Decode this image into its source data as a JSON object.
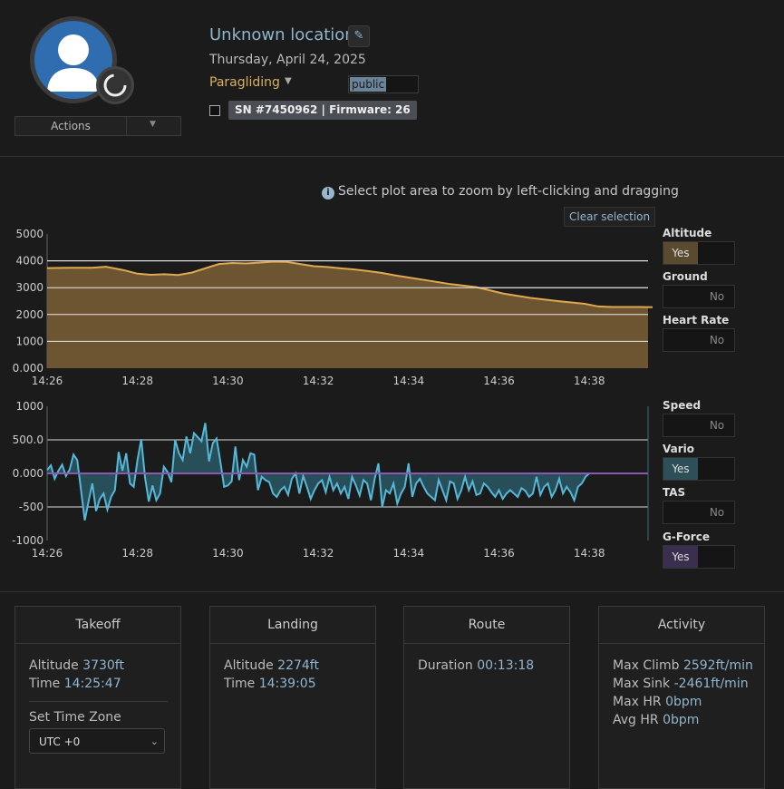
{
  "header": {
    "title": "Unknown location",
    "date": "Thursday, April 24, 2025",
    "activity": "Paragliding",
    "visibility": "public",
    "device": "SN #7450962 | Firmware: 26",
    "actions_label": "Actions",
    "edit_icon": "pencil-icon"
  },
  "hint": {
    "icon": "info-icon",
    "text": "Select plot area to zoom by left-clicking and dragging"
  },
  "clear_selection": "Clear selection",
  "toggles": {
    "altitude": {
      "label": "Altitude",
      "state": "Yes",
      "color": "#5a4a30"
    },
    "ground": {
      "label": "Ground",
      "state": "No"
    },
    "heart_rate": {
      "label": "Heart Rate",
      "state": "No"
    },
    "speed": {
      "label": "Speed",
      "state": "No"
    },
    "vario": {
      "label": "Vario",
      "state": "Yes",
      "color": "#2e4e58"
    },
    "tas": {
      "label": "TAS",
      "state": "No"
    },
    "gforce": {
      "label": "G-Force",
      "state": "Yes",
      "color": "#3b2f50"
    }
  },
  "cards": {
    "takeoff": {
      "title": "Takeoff",
      "altitude_label": "Altitude",
      "altitude": "3730ft",
      "time_label": "Time",
      "time": "14:25:47",
      "tz_label": "Set Time Zone",
      "tz_value": "UTC +0"
    },
    "landing": {
      "title": "Landing",
      "altitude_label": "Altitude",
      "altitude": "2274ft",
      "time_label": "Time",
      "time": "14:39:05"
    },
    "route": {
      "title": "Route",
      "duration_label": "Duration",
      "duration": "00:13:18"
    },
    "activity": {
      "title": "Activity",
      "max_climb_label": "Max Climb",
      "max_climb": "2592ft/min",
      "max_sink_label": "Max Sink",
      "max_sink": "-2461ft/min",
      "max_hr_label": "Max HR",
      "max_hr": "0bpm",
      "avg_hr_label": "Avg HR",
      "avg_hr": "0bpm"
    }
  },
  "chart_data": [
    {
      "type": "area",
      "series": [
        {
          "name": "Altitude",
          "color": "#e0a850",
          "x": [
            0,
            0.5,
            1,
            1.3,
            1.7,
            2,
            2.3,
            2.6,
            2.9,
            3.2,
            3.5,
            3.8,
            4.1,
            4.4,
            4.7,
            5,
            5.3,
            5.6,
            5.9,
            6.2,
            6.5,
            6.8,
            7.1,
            7.4,
            7.7,
            8,
            8.3,
            8.6,
            8.9,
            9.2,
            9.5,
            9.8,
            10.1,
            10.4,
            10.7,
            11,
            11.3,
            11.6,
            11.9,
            12.2,
            12.5,
            12.8,
            13.1,
            13.4
          ],
          "values": [
            3730,
            3740,
            3740,
            3780,
            3650,
            3520,
            3480,
            3500,
            3470,
            3560,
            3720,
            3880,
            3920,
            3900,
            3930,
            3970,
            3960,
            3880,
            3800,
            3770,
            3720,
            3680,
            3620,
            3550,
            3460,
            3380,
            3300,
            3220,
            3140,
            3080,
            3020,
            2900,
            2780,
            2700,
            2620,
            2560,
            2500,
            2450,
            2400,
            2300,
            2280,
            2280,
            2280,
            2274
          ]
        }
      ],
      "x_ticks": [
        "14:26",
        "14:28",
        "14:30",
        "14:32",
        "14:34",
        "14:36",
        "14:38"
      ],
      "y_ticks": [
        "0.000",
        "1000",
        "2000",
        "3000",
        "4000",
        "5000"
      ],
      "ylim": [
        0,
        5000
      ],
      "xlim": [
        0,
        13.3
      ],
      "grid": true
    },
    {
      "type": "line",
      "series": [
        {
          "name": "Vario",
          "color": "#55b8d8",
          "values": [
            50,
            120,
            -80,
            40,
            130,
            -40,
            60,
            280,
            200,
            -250,
            -700,
            -420,
            -150,
            -560,
            -380,
            -300,
            -540,
            -350,
            -250,
            320,
            40,
            300,
            -150,
            -200,
            200,
            510,
            -60,
            -420,
            -180,
            -400,
            -300,
            100,
            20,
            -130,
            500,
            300,
            200,
            550,
            300,
            600,
            540,
            480,
            750,
            180,
            450,
            520,
            180,
            -200,
            -180,
            -120,
            400,
            -100,
            200,
            100,
            300,
            280,
            -250,
            -50,
            -100,
            -130,
            -300,
            -350,
            -250,
            -200,
            -320,
            -80,
            0,
            -300,
            -40,
            -200,
            -380,
            -250,
            -150,
            -100,
            -280,
            -50,
            -250,
            -150,
            -300,
            -200,
            -380,
            -50,
            -180,
            -330,
            -100,
            -150,
            -400,
            -80,
            150,
            -500,
            -250,
            -300,
            -150,
            -450,
            -300,
            -200,
            150,
            -350,
            -150,
            -80,
            -200,
            -300,
            -350,
            -400,
            -100,
            -250,
            -400,
            -120,
            -150,
            -380,
            -250,
            -50,
            -250,
            -120,
            -320,
            -300,
            -150,
            -200,
            -280,
            -350,
            -250,
            -380,
            -300,
            -250,
            -300,
            -350,
            -220,
            -260,
            -350,
            -300,
            -50,
            -320,
            -200,
            -150,
            -350,
            -250,
            -80,
            -300,
            -200,
            -280,
            -400,
            -200,
            -150,
            -50,
            0
          ]
        },
        {
          "name": "G-Force",
          "color": "#8a5ab0",
          "values": [
            0,
            0
          ]
        }
      ],
      "x_ticks": [
        "14:26",
        "14:28",
        "14:30",
        "14:32",
        "14:34",
        "14:36",
        "14:38"
      ],
      "y_ticks": [
        "-1000",
        "-500",
        "0.000",
        "500.0",
        "1000"
      ],
      "ylim": [
        -1000,
        1000
      ],
      "xlim": [
        0,
        13.3
      ],
      "grid": true
    }
  ]
}
